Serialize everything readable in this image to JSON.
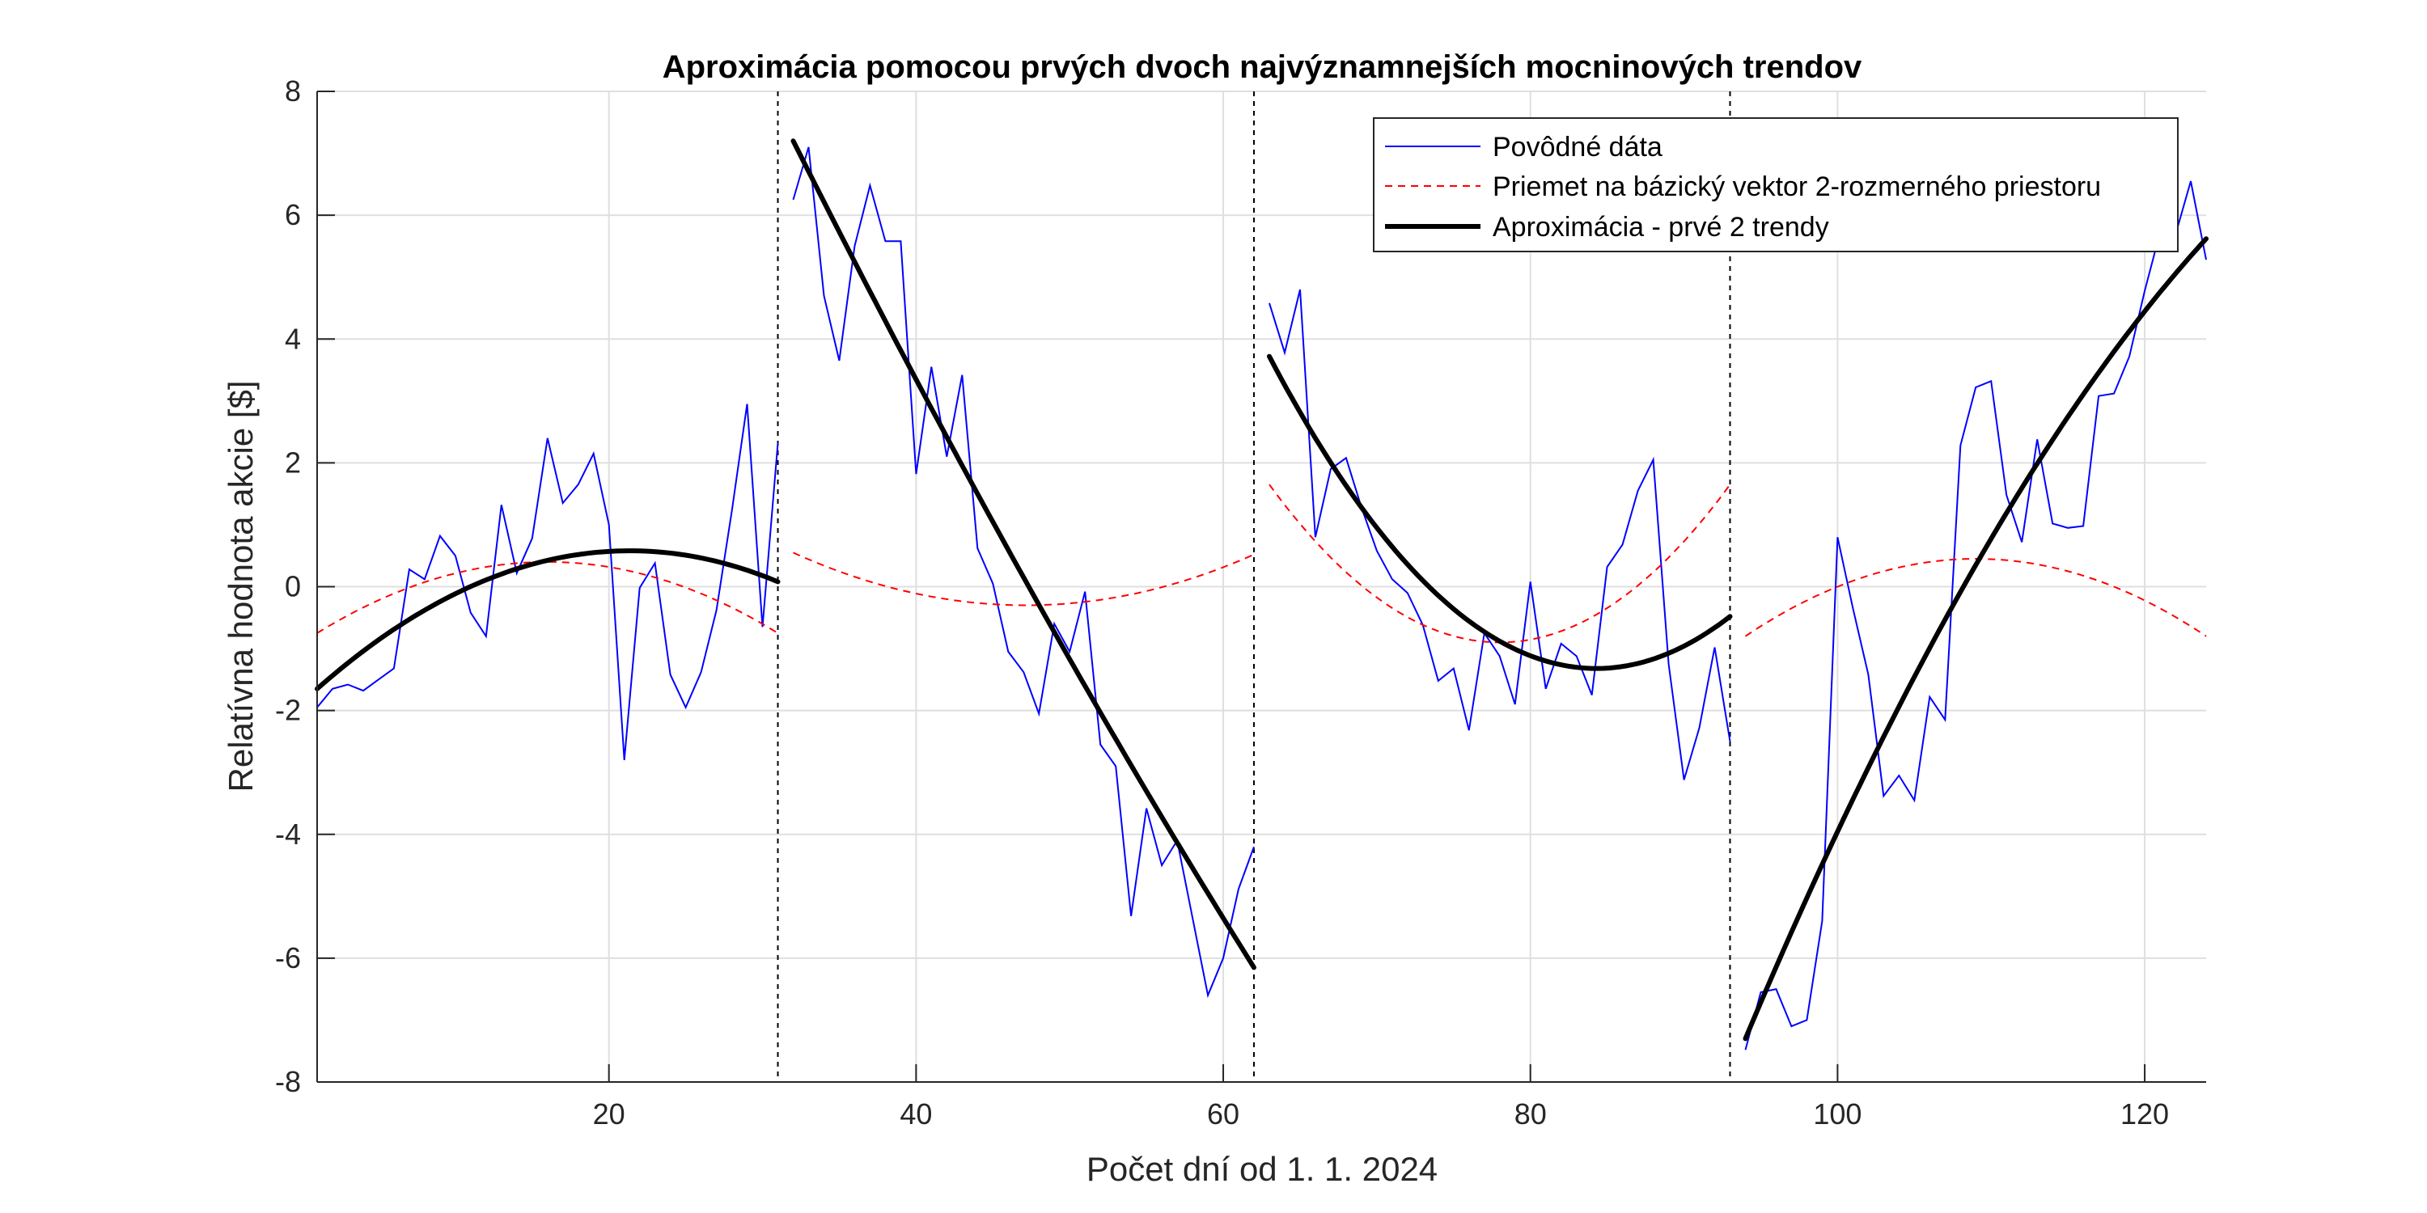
{
  "chart_data": {
    "type": "line",
    "title": "Aproximácia pomocou prvých dvoch najvýznamnejších mocninových trendov",
    "xlabel": "Počet dní od 1. 1. 2024",
    "ylabel": "Relatívna hodnota akcie [$]",
    "xlim": [
      1,
      124
    ],
    "ylim": [
      -8,
      8
    ],
    "xticks": [
      20,
      40,
      60,
      80,
      100,
      120
    ],
    "yticks": [
      -8,
      -6,
      -4,
      -2,
      0,
      2,
      4,
      6,
      8
    ],
    "xtick_labels": [
      "20",
      "40",
      "60",
      "80",
      "100",
      "120"
    ],
    "ytick_labels": [
      "-8",
      "-6",
      "-4",
      "-2",
      "0",
      "2",
      "4",
      "6",
      "8"
    ],
    "grid": true,
    "legend_position": "top-right",
    "segment_boundaries": [
      31,
      62,
      93
    ],
    "segments": [
      {
        "x_start": 1,
        "x_end": 31,
        "projection": [
          -0.75,
          0.4,
          0.0,
          -0.75
        ],
        "approximation": [
          -1.65,
          0.58,
          0.05,
          0.08
        ]
      },
      {
        "x_start": 32,
        "x_end": 62,
        "projection": [
          0.55,
          -0.3,
          0.0,
          0.52
        ],
        "approximation": [
          7.2,
          -6.1,
          0.0,
          -6.15
        ]
      },
      {
        "x_start": 63,
        "x_end": 93,
        "projection": [
          1.65,
          -0.9,
          0.0,
          1.65
        ],
        "approximation": [
          3.72,
          -1.32,
          0.0,
          -0.48
        ]
      },
      {
        "x_start": 94,
        "x_end": 124,
        "projection": [
          -0.8,
          0.45,
          0.0,
          -0.8
        ],
        "approximation": [
          -7.3,
          5.62,
          0.0,
          5.62
        ]
      }
    ],
    "series": [
      {
        "name": "Povôdné dáta",
        "color": "#0000ff",
        "style": "solid",
        "x": [
          1,
          2,
          3,
          4,
          5,
          6,
          7,
          8,
          9,
          10,
          11,
          12,
          13,
          14,
          15,
          16,
          17,
          18,
          19,
          20,
          21,
          22,
          23,
          24,
          25,
          26,
          27,
          28,
          29,
          30,
          31,
          32,
          33,
          34,
          35,
          36,
          37,
          38,
          39,
          40,
          41,
          42,
          43,
          44,
          45,
          46,
          47,
          48,
          49,
          50,
          51,
          52,
          53,
          54,
          55,
          56,
          57,
          58,
          59,
          60,
          61,
          62,
          63,
          64,
          65,
          66,
          67,
          68,
          69,
          70,
          71,
          72,
          73,
          74,
          75,
          76,
          77,
          78,
          79,
          80,
          81,
          82,
          83,
          84,
          85,
          86,
          87,
          88,
          89,
          90,
          91,
          92,
          93,
          94,
          95,
          96,
          97,
          98,
          99,
          100,
          101,
          102,
          103,
          104,
          105,
          106,
          107,
          108,
          109,
          110,
          111,
          112,
          113,
          114,
          115,
          116,
          117,
          118,
          119,
          120,
          121,
          122,
          123,
          124
        ],
        "y": [
          -1.95,
          -1.65,
          -1.58,
          -1.68,
          -1.5,
          -1.32,
          0.28,
          0.12,
          0.82,
          0.5,
          -0.42,
          -0.8,
          1.32,
          0.22,
          0.78,
          2.4,
          1.35,
          1.65,
          2.15,
          1.0,
          -2.8,
          -0.02,
          0.38,
          -1.42,
          -1.95,
          -1.38,
          -0.38,
          1.22,
          2.95,
          -0.65,
          2.32,
          6.25,
          7.1,
          4.7,
          3.65,
          5.5,
          6.48,
          5.58,
          5.58,
          1.82,
          3.55,
          2.1,
          3.42,
          0.62,
          0.05,
          -1.05,
          -1.38,
          -2.05,
          -0.6,
          -1.05,
          -0.08,
          -2.55,
          -2.9,
          -5.32,
          -3.58,
          -4.5,
          -4.1,
          -5.35,
          -6.6,
          -6.0,
          -4.88,
          -4.2,
          4.58,
          3.78,
          4.8,
          0.8,
          1.9,
          2.08,
          1.28,
          0.58,
          0.12,
          -0.1,
          -0.62,
          -1.52,
          -1.32,
          -2.32,
          -0.75,
          -1.12,
          -1.9,
          0.08,
          -1.65,
          -0.92,
          -1.12,
          -1.75,
          0.32,
          0.68,
          1.55,
          2.05,
          -1.25,
          -3.12,
          -2.28,
          -0.98,
          -2.5,
          -7.48,
          -6.55,
          -6.5,
          -7.1,
          -7.0,
          -5.4,
          0.8,
          -0.35,
          -1.42,
          -3.38,
          -3.05,
          -3.45,
          -1.78,
          -2.15,
          2.28,
          3.22,
          3.32,
          1.48,
          0.72,
          2.38,
          1.02,
          0.95,
          0.98,
          3.08,
          3.12,
          3.72,
          4.78,
          5.72,
          5.68,
          6.55,
          5.28
        ]
      },
      {
        "name": "Priemet na bázický vektor 2-rozmerného priestoru",
        "color": "#ff0000",
        "style": "dashed"
      },
      {
        "name": "Aproximácia - prvé 2 trendy",
        "color": "#000000",
        "style": "solid-thick"
      }
    ]
  }
}
